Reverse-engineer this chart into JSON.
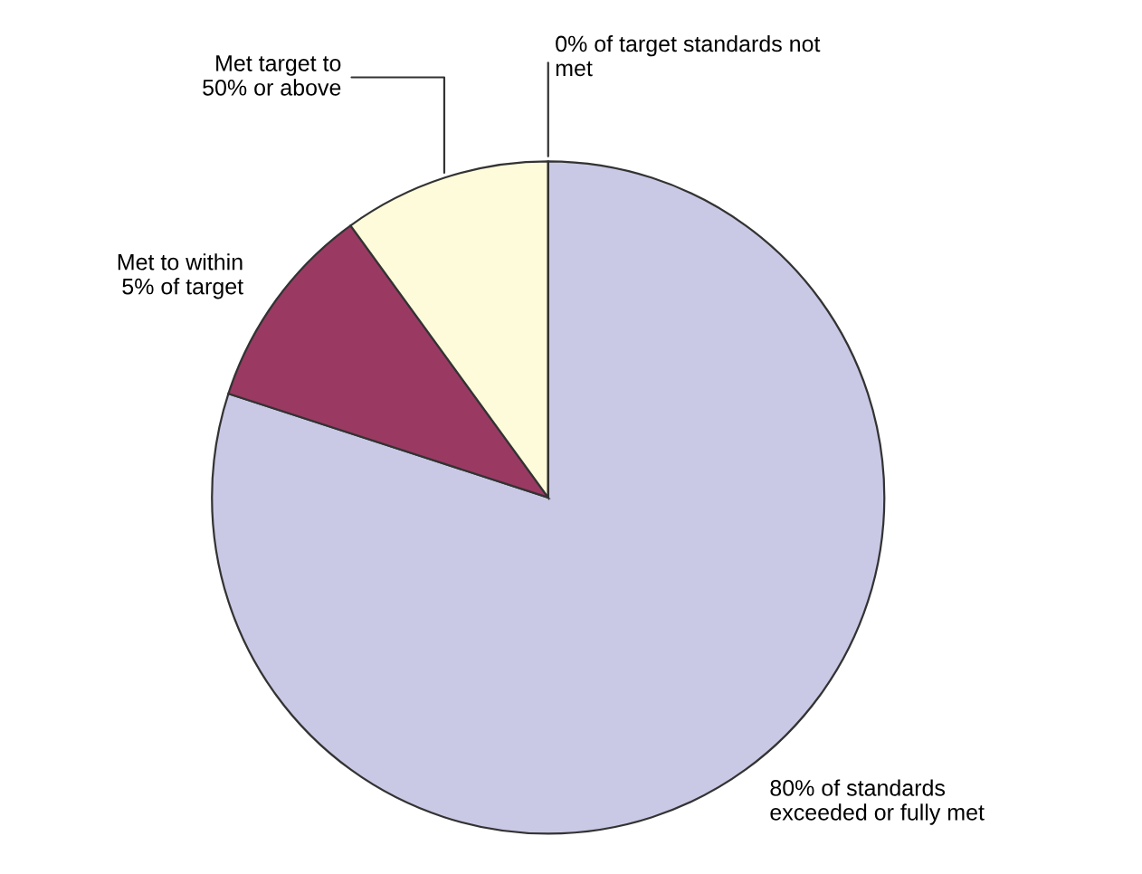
{
  "chart_data": {
    "type": "pie",
    "categories": [
      "80% of standards\nexceeded or fully met",
      "Met to within\n5% of target",
      "Met target to\n50% or above",
      "0% of target standards not\nmet"
    ],
    "values": [
      80,
      10,
      10,
      0
    ],
    "colors": [
      "#c9c9e6",
      "#9a3a63",
      "#fdfbda",
      "#e0e0e0"
    ]
  }
}
